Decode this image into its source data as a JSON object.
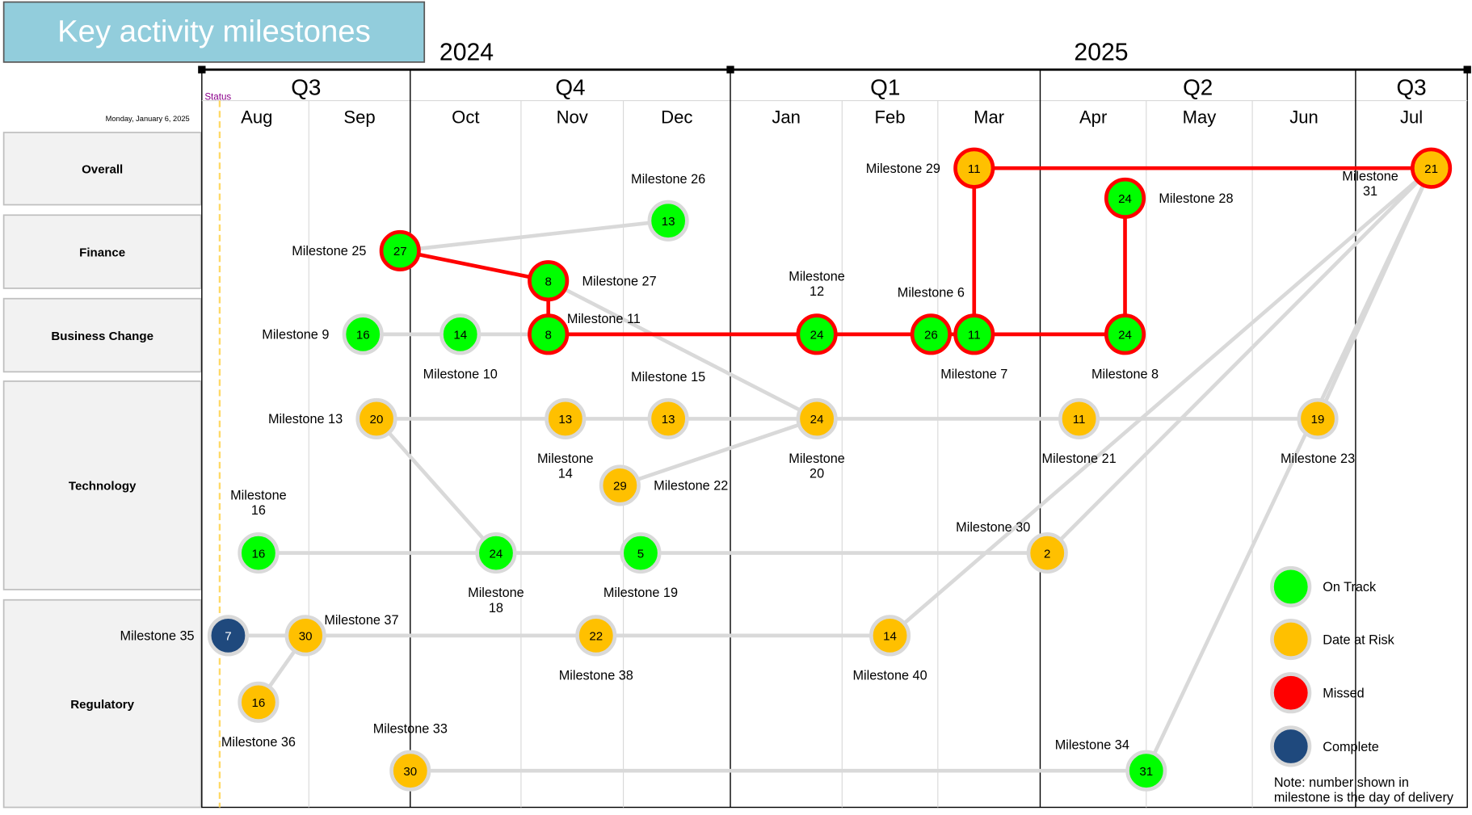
{
  "title": "Key activity milestones",
  "status_date": "Monday, January 6, 2025",
  "status_label": "Status",
  "years": [
    {
      "label": "2024"
    },
    {
      "label": "2025"
    }
  ],
  "quarters": [
    {
      "label": "Q3"
    },
    {
      "label": "Q4"
    },
    {
      "label": "Q1"
    },
    {
      "label": "Q2"
    },
    {
      "label": "Q3"
    }
  ],
  "months": [
    "Aug",
    "Sep",
    "Oct",
    "Nov",
    "Dec",
    "Jan",
    "Feb",
    "Mar",
    "Apr",
    "May",
    "Jun",
    "Jul"
  ],
  "rows": [
    "Overall",
    "Finance",
    "Business Change",
    "Technology",
    "Regulatory"
  ],
  "colors": {
    "on_track": "#00FF00",
    "at_risk": "#FFC000",
    "missed": "#FF0000",
    "complete": "#1F497D",
    "link": "#D9D9D9",
    "title_bg": "#92CDDC"
  },
  "legend": [
    {
      "status": "on_track",
      "label": "On Track"
    },
    {
      "status": "at_risk",
      "label": "Date at Risk"
    },
    {
      "status": "missed",
      "label": "Missed"
    },
    {
      "status": "complete",
      "label": "Complete"
    }
  ],
  "note": [
    "Note: number shown in",
    "milestone is the day of delivery"
  ],
  "milestones": [
    {
      "id": "M29",
      "label": "Milestone 29",
      "month": "Mar",
      "day": 11,
      "track": 0,
      "status": "at_risk",
      "missed": true,
      "place": "left"
    },
    {
      "id": "M31",
      "label": "Milestone 31",
      "month": "Jul",
      "day": 21,
      "track": 0,
      "status": "at_risk",
      "missed": true,
      "place": "belowleft2"
    },
    {
      "id": "M26",
      "label": "Milestone 26",
      "month": "Dec",
      "day": 13,
      "track": 2,
      "status": "on_track",
      "missed": false,
      "place": "above"
    },
    {
      "id": "M25",
      "label": "Milestone 25",
      "month": "Sep",
      "day": 27,
      "track": 3,
      "status": "on_track",
      "missed": true,
      "place": "left"
    },
    {
      "id": "M27",
      "label": "Milestone 27",
      "month": "Nov",
      "day": 8,
      "track": 4,
      "status": "on_track",
      "missed": true,
      "place": "right"
    },
    {
      "id": "M28",
      "label": "Milestone 28",
      "month": "Apr",
      "day": 24,
      "track": 1,
      "status": "on_track",
      "missed": true,
      "place": "right"
    },
    {
      "id": "M9",
      "label": "Milestone 9",
      "month": "Sep",
      "day": 16,
      "track": 5,
      "status": "on_track",
      "missed": false,
      "place": "left"
    },
    {
      "id": "M10",
      "label": "Milestone 10",
      "month": "Oct",
      "day": 14,
      "track": 5,
      "status": "on_track",
      "missed": false,
      "place": "below"
    },
    {
      "id": "M11",
      "label": "Milestone 11",
      "month": "Nov",
      "day": 8,
      "track": 5,
      "status": "on_track",
      "missed": true,
      "place": "aboveright"
    },
    {
      "id": "M12",
      "label": "Milestone 12",
      "month": "Jan",
      "day": 24,
      "track": 5,
      "status": "on_track",
      "missed": true,
      "place": "above2"
    },
    {
      "id": "M6",
      "label": "Milestone 6",
      "month": "Feb",
      "day": 26,
      "track": 5,
      "status": "on_track",
      "missed": true,
      "place": "above"
    },
    {
      "id": "M7",
      "label": "Milestone 7",
      "month": "Mar",
      "day": 11,
      "track": 5,
      "status": "on_track",
      "missed": true,
      "place": "below"
    },
    {
      "id": "M8",
      "label": "Milestone 8",
      "month": "Apr",
      "day": 24,
      "track": 5,
      "status": "on_track",
      "missed": true,
      "place": "below"
    },
    {
      "id": "M13",
      "label": "Milestone 13",
      "month": "Sep",
      "day": 20,
      "track": 6,
      "status": "at_risk",
      "missed": false,
      "place": "left"
    },
    {
      "id": "M14",
      "label": "Milestone 14",
      "month": "Nov",
      "day": 13,
      "track": 6,
      "status": "at_risk",
      "missed": false,
      "place": "below2"
    },
    {
      "id": "M15",
      "label": "Milestone 15",
      "month": "Dec",
      "day": 13,
      "track": 6,
      "status": "at_risk",
      "missed": false,
      "place": "above"
    },
    {
      "id": "M20",
      "label": "Milestone 20",
      "month": "Jan",
      "day": 24,
      "track": 6,
      "status": "at_risk",
      "missed": false,
      "place": "below2"
    },
    {
      "id": "M21",
      "label": "Milestone 21",
      "month": "Apr",
      "day": 11,
      "track": 6,
      "status": "at_risk",
      "missed": false,
      "place": "below"
    },
    {
      "id": "M23",
      "label": "Milestone 23",
      "month": "Jun",
      "day": 19,
      "track": 6,
      "status": "at_risk",
      "missed": false,
      "place": "below"
    },
    {
      "id": "M22",
      "label": "Milestone 22",
      "month": "Nov",
      "day": 29,
      "track": 7,
      "status": "at_risk",
      "missed": false,
      "place": "right"
    },
    {
      "id": "M16",
      "label": "Milestone 16",
      "month": "Aug",
      "day": 16,
      "track": 8,
      "status": "on_track",
      "missed": false,
      "place": "above2"
    },
    {
      "id": "M18",
      "label": "Milestone 18",
      "month": "Oct",
      "day": 24,
      "track": 8,
      "status": "on_track",
      "missed": false,
      "place": "below2"
    },
    {
      "id": "M19",
      "label": "Milestone 19",
      "month": "Dec",
      "day": 5,
      "track": 8,
      "status": "on_track",
      "missed": false,
      "place": "below"
    },
    {
      "id": "M30",
      "label": "Milestone 30",
      "month": "Apr",
      "day": 2,
      "track": 8,
      "status": "at_risk",
      "missed": false,
      "place": "aboveleft"
    },
    {
      "id": "M35",
      "label": "Milestone 35",
      "month": "Aug",
      "day": 7,
      "track": 9,
      "status": "complete",
      "missed": false,
      "place": "left"
    },
    {
      "id": "M37",
      "label": "Milestone 37",
      "month": "Aug",
      "day": 30,
      "track": 9,
      "status": "at_risk",
      "missed": false,
      "place": "aboveright"
    },
    {
      "id": "M38",
      "label": "Milestone 38",
      "month": "Nov",
      "day": 22,
      "track": 9,
      "status": "at_risk",
      "missed": false,
      "place": "below"
    },
    {
      "id": "M40",
      "label": "Milestone 40",
      "month": "Feb",
      "day": 14,
      "track": 9,
      "status": "at_risk",
      "missed": false,
      "place": "below"
    },
    {
      "id": "M36",
      "label": "Milestone 36",
      "month": "Aug",
      "day": 16,
      "track": 10,
      "status": "at_risk",
      "missed": false,
      "place": "below"
    },
    {
      "id": "M33",
      "label": "Milestone 33",
      "month": "Sep",
      "day": 30,
      "track": 11,
      "status": "at_risk",
      "missed": false,
      "place": "above"
    },
    {
      "id": "M34",
      "label": "Milestone 34",
      "month": "Apr",
      "day": 31,
      "track": 11,
      "status": "on_track",
      "missed": false,
      "place": "aboveleft"
    }
  ],
  "links": [
    {
      "from": "M25",
      "to": "M26",
      "status": "link"
    },
    {
      "from": "M9",
      "to": "M11",
      "status": "link"
    },
    {
      "from": "M27",
      "to": "M20",
      "status": "link"
    },
    {
      "from": "M13",
      "to": "M23",
      "status": "link"
    },
    {
      "from": "M22",
      "to": "M20",
      "status": "link"
    },
    {
      "from": "M13",
      "to": "M18",
      "status": "link"
    },
    {
      "from": "M16",
      "to": "M30",
      "status": "link"
    },
    {
      "from": "M35",
      "to": "M40",
      "status": "link"
    },
    {
      "from": "M37",
      "to": "M36",
      "status": "link"
    },
    {
      "from": "M33",
      "to": "M34",
      "status": "link"
    },
    {
      "from": "M31",
      "to": "M40",
      "status": "link"
    },
    {
      "from": "M31",
      "to": "M30",
      "status": "link"
    },
    {
      "from": "M31",
      "to": "M34",
      "status": "link"
    },
    {
      "from": "M31",
      "to": "M23",
      "status": "link"
    },
    {
      "from": "M29",
      "to": "M31",
      "status": "missed"
    },
    {
      "from": "M29",
      "to": "M7",
      "status": "missed"
    },
    {
      "from": "M25",
      "to": "M27",
      "status": "missed"
    },
    {
      "from": "M27",
      "to": "M11",
      "status": "missed"
    },
    {
      "from": "M11",
      "to": "M8",
      "status": "missed"
    },
    {
      "from": "M28",
      "to": "M8",
      "status": "missed"
    }
  ]
}
